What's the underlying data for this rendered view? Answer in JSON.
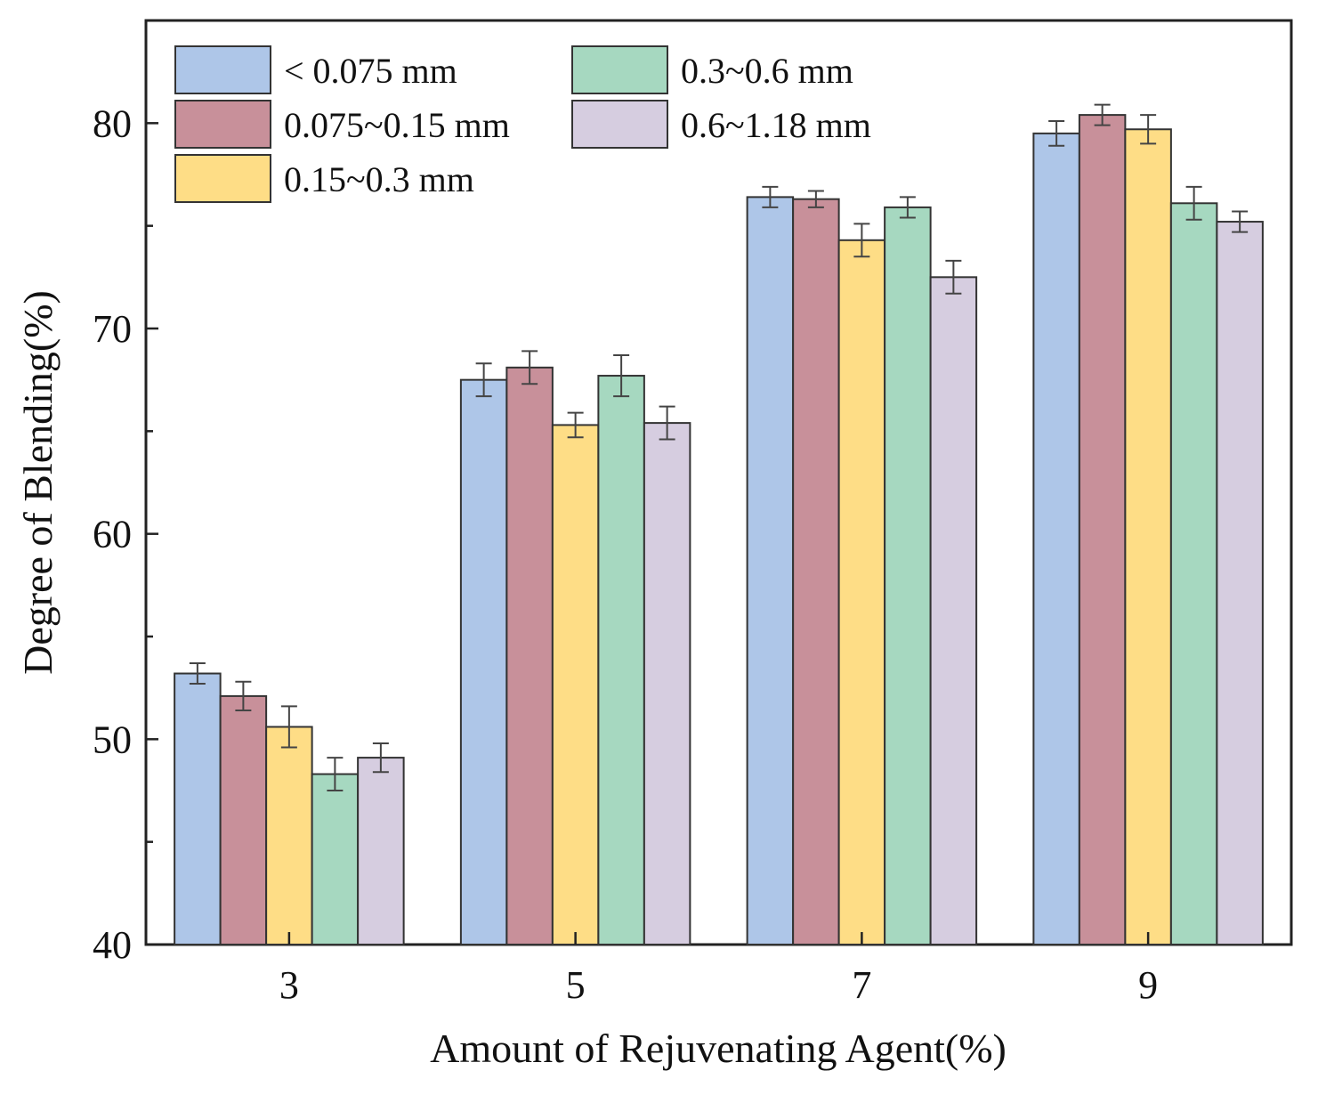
{
  "chart_data": {
    "type": "bar",
    "title": "",
    "xlabel": "Amount of Rejuvenating Agent(%)",
    "ylabel": "Degree of Blending(%)",
    "ylim": [
      40,
      85
    ],
    "yticks": [
      40,
      50,
      60,
      70,
      80
    ],
    "y_minor_step": 5,
    "categories": [
      "3",
      "5",
      "7",
      "9"
    ],
    "grid": false,
    "legend_position": "top-left",
    "series": [
      {
        "name": "< 0.075 mm",
        "color": "#aec6e8",
        "values": [
          53.2,
          67.5,
          76.4,
          79.5
        ],
        "errors": [
          0.5,
          0.8,
          0.5,
          0.6
        ]
      },
      {
        "name": "0.075~0.15 mm",
        "color": "#c8909a",
        "values": [
          52.1,
          68.1,
          76.3,
          80.4
        ],
        "errors": [
          0.7,
          0.8,
          0.4,
          0.5
        ]
      },
      {
        "name": "0.15~0.3 mm",
        "color": "#fedd86",
        "values": [
          50.6,
          65.3,
          74.3,
          79.7
        ],
        "errors": [
          1.0,
          0.6,
          0.8,
          0.7
        ]
      },
      {
        "name": "0.3~0.6 mm",
        "color": "#a6d8c0",
        "values": [
          48.3,
          67.7,
          75.9,
          76.1
        ],
        "errors": [
          0.8,
          1.0,
          0.5,
          0.8
        ]
      },
      {
        "name": "0.6~1.18 mm",
        "color": "#d6cde0",
        "values": [
          49.1,
          65.4,
          72.5,
          75.2
        ],
        "errors": [
          0.7,
          0.8,
          0.8,
          0.5
        ]
      }
    ]
  }
}
